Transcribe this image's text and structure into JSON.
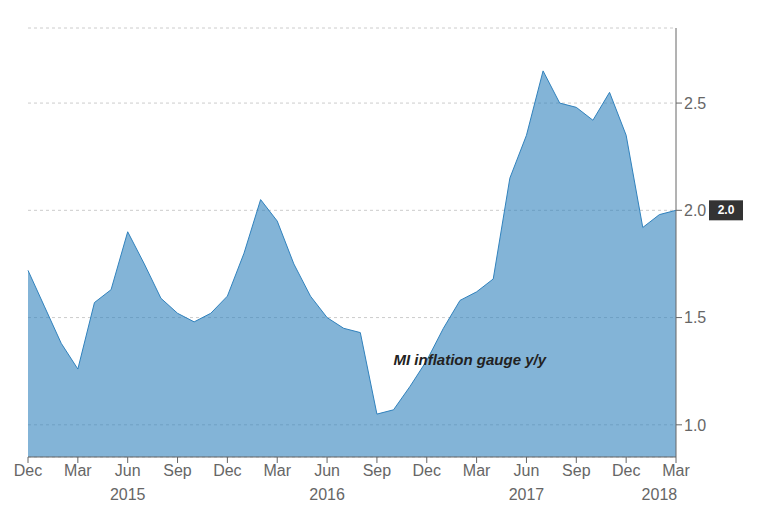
{
  "chart_data": {
    "type": "area",
    "categories": [
      "Dec",
      null,
      null,
      "Mar",
      null,
      null,
      "Jun",
      null,
      null,
      "Sep",
      null,
      null,
      "Dec",
      null,
      null,
      "Mar",
      null,
      null,
      "Jun",
      null,
      null,
      "Sep",
      null,
      null,
      "Dec",
      null,
      null,
      "Mar",
      null,
      null,
      "Jun",
      null,
      null,
      "Sep",
      null,
      null,
      "Dec",
      null,
      null,
      "Mar"
    ],
    "values": [
      1.72,
      1.55,
      1.38,
      1.26,
      1.57,
      1.63,
      1.9,
      1.75,
      1.59,
      1.52,
      1.48,
      1.52,
      1.6,
      1.8,
      2.05,
      1.95,
      1.75,
      1.6,
      1.5,
      1.45,
      1.43,
      1.05,
      1.07,
      1.18,
      1.3,
      1.45,
      1.58,
      1.62,
      1.68,
      2.15,
      2.35,
      2.65,
      2.5,
      2.48,
      2.42,
      2.55,
      2.35,
      1.92,
      1.98,
      2.0
    ],
    "ylim": [
      0.85,
      2.85
    ],
    "yticks": [
      {
        "value": 1.0,
        "label": "1.0"
      },
      1.5,
      {
        "value": 2.0,
        "label": "2.0"
      },
      2.5
    ],
    "grid": true,
    "annotations": [
      {
        "text": "2015",
        "x": 6
      },
      {
        "text": "2016",
        "x": 18
      },
      {
        "text": "2017",
        "x": 30
      },
      {
        "text": "2018",
        "x": 38
      },
      {
        "text": "MI inflation gauge y/y",
        "x": 22,
        "y": 1.28
      },
      {
        "text": "2.0",
        "y": 2.0
      }
    ]
  }
}
